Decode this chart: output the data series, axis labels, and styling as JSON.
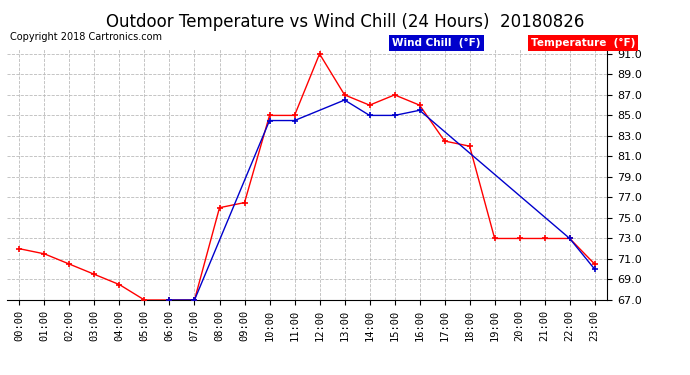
{
  "title": "Outdoor Temperature vs Wind Chill (24 Hours)  20180826",
  "copyright": "Copyright 2018 Cartronics.com",
  "hours": [
    "00:00",
    "01:00",
    "02:00",
    "03:00",
    "04:00",
    "05:00",
    "06:00",
    "07:00",
    "08:00",
    "09:00",
    "10:00",
    "11:00",
    "12:00",
    "13:00",
    "14:00",
    "15:00",
    "16:00",
    "17:00",
    "18:00",
    "19:00",
    "20:00",
    "21:00",
    "22:00",
    "23:00"
  ],
  "temperature": [
    72.0,
    71.5,
    70.5,
    69.5,
    68.5,
    67.0,
    67.0,
    67.0,
    76.0,
    76.5,
    85.0,
    85.0,
    91.0,
    87.0,
    86.0,
    87.0,
    86.0,
    82.5,
    82.0,
    73.0,
    73.0,
    73.0,
    73.0,
    70.5
  ],
  "wind_chill_x": [
    6,
    7,
    10,
    11,
    13,
    14,
    15,
    16,
    22,
    23
  ],
  "wind_chill_y": [
    67.0,
    67.0,
    84.5,
    84.5,
    86.5,
    85.0,
    85.0,
    85.5,
    73.0,
    70.0
  ],
  "ylim": [
    67.0,
    91.5
  ],
  "yticks": [
    67.0,
    69.0,
    71.0,
    73.0,
    75.0,
    77.0,
    79.0,
    81.0,
    83.0,
    85.0,
    87.0,
    89.0,
    91.0
  ],
  "temp_color": "#ff0000",
  "wind_chill_color": "#0000cc",
  "background_color": "#ffffff",
  "grid_color": "#bbbbbb",
  "title_fontsize": 12,
  "copyright_fontsize": 7,
  "legend_wind_label": "Wind Chill  (°F)",
  "legend_temp_label": "Temperature  (°F)",
  "tick_fontsize": 7.5,
  "ytick_fontsize": 8
}
